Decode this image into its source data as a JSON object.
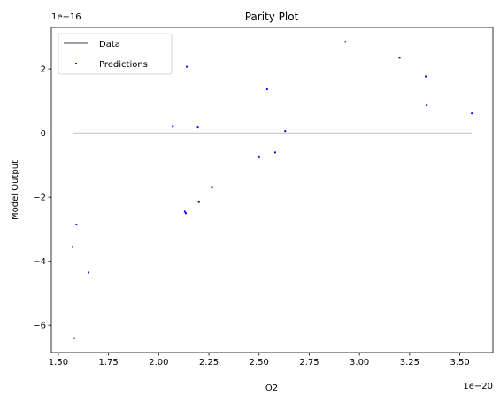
{
  "chart_data": {
    "type": "scatter",
    "title": "Parity Plot",
    "xlabel": "O2",
    "ylabel": "Model Output",
    "x_offset_text": "1e−20",
    "y_offset_text": "1e−16",
    "xlim": [
      1.465e-20,
      3.665e-20
    ],
    "ylim": [
      -6.85e-16,
      3.3e-16
    ],
    "xticks": [
      1.5e-20,
      1.75e-20,
      2e-20,
      2.25e-20,
      2.5e-20,
      2.75e-20,
      3e-20,
      3.25e-20,
      3.5e-20
    ],
    "xtick_labels": [
      "1.50",
      "1.75",
      "2.00",
      "2.25",
      "2.50",
      "2.75",
      "3.00",
      "3.25",
      "3.50"
    ],
    "yticks": [
      -6e-16,
      -4e-16,
      -2e-16,
      0,
      2e-16
    ],
    "ytick_labels": [
      "−6",
      "−4",
      "−2",
      "0",
      "2"
    ],
    "grid": false,
    "legend_placement": "upper-left",
    "series": [
      {
        "name": "Data",
        "kind": "line",
        "color": "#808080",
        "x": [
          1.57e-20,
          3.56e-20
        ],
        "y": [
          1.57e-20,
          3.56e-20
        ]
      },
      {
        "name": "Predictions",
        "kind": "scatter",
        "color": "#0000ff",
        "x": [
          1.57e-20,
          1.58e-20,
          1.59e-20,
          1.65e-20,
          2.07e-20,
          2.13e-20,
          2.135e-20,
          2.14e-20,
          2.195e-20,
          2.2e-20,
          2.265e-20,
          2.5e-20,
          2.54e-20,
          2.58e-20,
          2.63e-20,
          2.93e-20,
          3.2e-20,
          3.33e-20,
          3.335e-20,
          3.56e-20
        ],
        "y": [
          -3.55e-16,
          -6.4e-16,
          -2.85e-16,
          -4.35e-16,
          2e-17,
          -2.45e-16,
          -2.5e-16,
          2.07e-16,
          1.8e-17,
          -2.15e-16,
          -1.7e-16,
          -7.5e-17,
          1.37e-16,
          -6e-17,
          7e-18,
          2.85e-16,
          2.35e-16,
          1.77e-16,
          8.7e-17,
          6.2e-17
        ]
      }
    ]
  }
}
